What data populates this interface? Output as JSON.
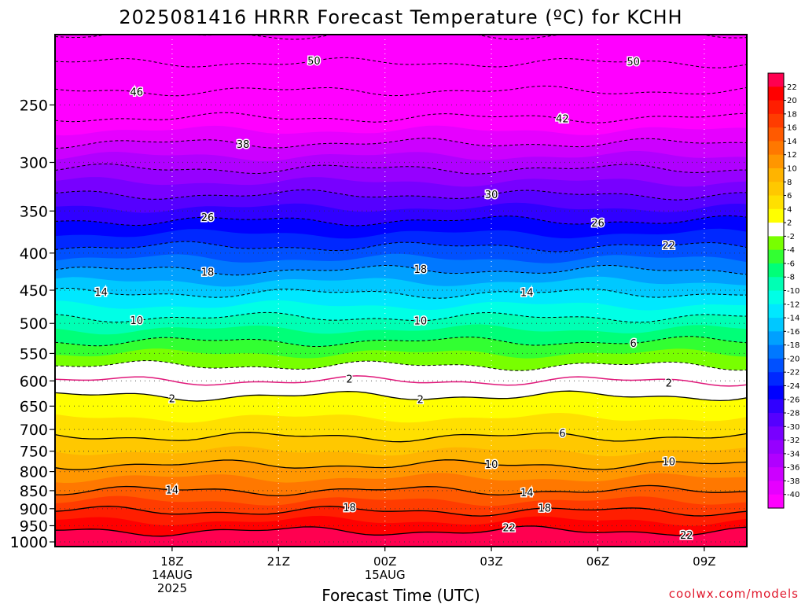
{
  "chart_data": {
    "type": "heatmap",
    "title": "2025081416 HRRR Forecast Temperature (ºC) for KCHH",
    "xlabel": "Forecast Time (UTC)",
    "ylabel": "",
    "y_log_pressure": true,
    "ylim": [
      1015,
      200
    ],
    "y_ticks": [
      250,
      300,
      350,
      400,
      450,
      500,
      550,
      600,
      650,
      700,
      750,
      800,
      850,
      900,
      950,
      1000
    ],
    "xlim": [
      -2.0,
      10.0
    ],
    "x_ticks": [
      {
        "h": 0,
        "lines": [
          "18Z",
          "14AUG",
          "2025"
        ]
      },
      {
        "h": 3,
        "lines": [
          "21Z"
        ]
      },
      {
        "h": 6,
        "lines": [
          "00Z",
          "15AUG"
        ]
      },
      {
        "h": 9,
        "lines": [
          "03Z"
        ]
      },
      {
        "h": 12,
        "lines": [
          "06Z"
        ]
      },
      {
        "h": 15,
        "lines": [
          "09Z"
        ]
      }
    ],
    "x_hours": [
      -3.3,
      0,
      3,
      6,
      9,
      12,
      15,
      16.2
    ],
    "isotherm_profile": {
      "pressure": [
        1000,
        950,
        900,
        850,
        800,
        750,
        700,
        650,
        600,
        550,
        500,
        450,
        400,
        350,
        300,
        250,
        200
      ],
      "temperature": [
        24,
        21,
        17.5,
        14,
        11,
        8,
        5,
        3,
        0.5,
        -4,
        -9,
        -14.5,
        -21,
        -27.5,
        -35,
        -44,
        -54
      ]
    },
    "color_scale": {
      "bins": [
        -42,
        -40,
        -38,
        -36,
        -34,
        -32,
        -30,
        -28,
        -26,
        -24,
        -22,
        -20,
        -18,
        -16,
        -14,
        -12,
        -10,
        -8,
        -6,
        -4,
        -2,
        2,
        4,
        6,
        8,
        10,
        12,
        14,
        16,
        18,
        20,
        22,
        24
      ],
      "colors": [
        "#ff00ff",
        "#e600ff",
        "#cc00ff",
        "#b000ff",
        "#9600ff",
        "#7800ff",
        "#5500ff",
        "#3000ff",
        "#0000ff",
        "#0028ff",
        "#0050ff",
        "#0078ff",
        "#00a0ff",
        "#00c8ff",
        "#00e8ff",
        "#00ffe6",
        "#00ffb4",
        "#00ff78",
        "#32ff32",
        "#78ff00",
        "#ffffff",
        "#ffff00",
        "#ffe000",
        "#ffc800",
        "#ffb400",
        "#ff9600",
        "#ff7800",
        "#ff5a00",
        "#ff3c00",
        "#ff1e00",
        "#ff0000",
        "#ff0050"
      ],
      "labels": [
        "22",
        "20",
        "18",
        "16",
        "14",
        "12",
        "10",
        "8",
        "6",
        "4",
        "2",
        "-2",
        "-4",
        "-6",
        "-8",
        "-10",
        "-12",
        "-14",
        "-16",
        "-18",
        "-20",
        "-22",
        "-24",
        "-26",
        "-28",
        "-30",
        "-32",
        "-34",
        "-36",
        "-38",
        "-40"
      ]
    },
    "contour_levels": [
      22,
      18,
      14,
      10,
      6,
      2,
      -2,
      -6,
      -10,
      -14,
      -18,
      -22,
      -26,
      -30,
      -34,
      -38,
      -42,
      -46,
      -50,
      -54
    ],
    "contour_labels": [
      {
        "text": "22",
        "t": 22,
        "h": 9.5
      },
      {
        "text": "22",
        "t": 22,
        "h": 14.5
      },
      {
        "text": "18",
        "t": 18,
        "h": 5.0
      },
      {
        "text": "18",
        "t": 18,
        "h": 10.5
      },
      {
        "text": "14",
        "t": 14,
        "h": 0.0
      },
      {
        "text": "14",
        "t": 14,
        "h": 10.0
      },
      {
        "text": "10",
        "t": 10,
        "h": 9.0
      },
      {
        "text": "10",
        "t": 10,
        "h": 14.0
      },
      {
        "text": "6",
        "t": 6,
        "h": 11.0
      },
      {
        "text": "2",
        "t": 2,
        "h": 0.0
      },
      {
        "text": "2",
        "t": 2,
        "h": 7.0
      },
      {
        "text": "2",
        "t": 0.8,
        "h": 5.0
      },
      {
        "text": "2",
        "t": 0.8,
        "h": 14.0
      },
      {
        "text": "6",
        "t": -6,
        "h": 13.0
      },
      {
        "text": "10",
        "t": -10,
        "h": -1.0
      },
      {
        "text": "10",
        "t": -10,
        "h": 7.0
      },
      {
        "text": "14",
        "t": -14,
        "h": -2.0
      },
      {
        "text": "14",
        "t": -14,
        "h": 10.0
      },
      {
        "text": "18",
        "t": -18,
        "h": 1.0
      },
      {
        "text": "18",
        "t": -18,
        "h": 7.0
      },
      {
        "text": "22",
        "t": -22,
        "h": 14.0
      },
      {
        "text": "26",
        "t": -26,
        "h": 1.0
      },
      {
        "text": "26",
        "t": -26,
        "h": 12.0
      },
      {
        "text": "30",
        "t": -30,
        "h": 9.0
      },
      {
        "text": "38",
        "t": -38,
        "h": 2.0
      },
      {
        "text": "42",
        "t": -42,
        "h": 11.0
      },
      {
        "text": "46",
        "t": -46,
        "h": -1.0
      },
      {
        "text": "50",
        "t": -50,
        "h": 4.0
      },
      {
        "text": "50",
        "t": -50,
        "h": 13.0
      }
    ]
  },
  "credit": "coolwx.com/models"
}
